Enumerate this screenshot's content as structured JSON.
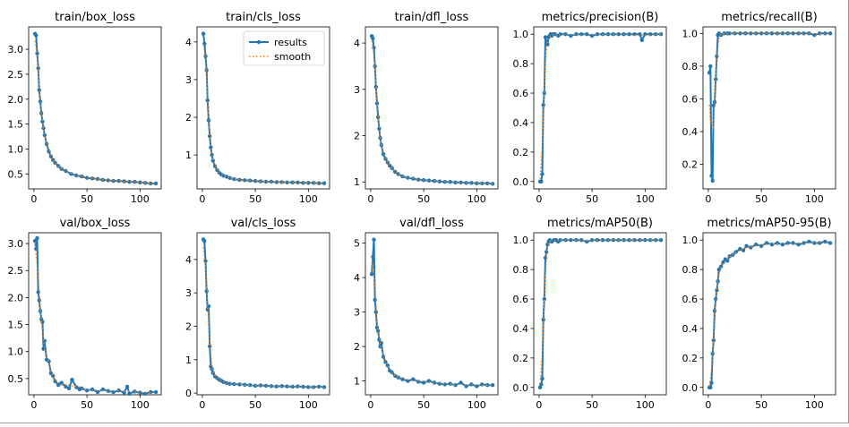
{
  "colors": {
    "results": "#1f77b4",
    "smooth": "#ff7f0e",
    "axis": "#000000"
  },
  "legend": {
    "results_label": "results",
    "smooth_label": "smooth",
    "placement": "top-right of train/cls_loss"
  },
  "chart_data": [
    {
      "type": "line",
      "title": "train/box_loss",
      "xlim": [
        -5,
        120
      ],
      "ylim": [
        0.2,
        3.45
      ],
      "xticks": [
        0,
        50,
        100
      ],
      "yticks": [
        0.5,
        1.0,
        1.5,
        2.0,
        2.5,
        3.0
      ],
      "ytick_labels": [
        "0.5",
        "1.0",
        "1.5",
        "2.0",
        "2.5",
        "3.0"
      ],
      "series": [
        {
          "name": "results",
          "x": [
            1,
            2,
            3,
            4,
            5,
            6,
            7,
            8,
            9,
            10,
            12,
            14,
            16,
            18,
            20,
            23,
            26,
            30,
            35,
            40,
            45,
            50,
            55,
            60,
            65,
            70,
            75,
            80,
            85,
            90,
            95,
            100,
            105,
            110,
            115
          ],
          "y": [
            3.31,
            3.28,
            2.92,
            2.62,
            2.18,
            1.95,
            1.72,
            1.55,
            1.42,
            1.28,
            1.1,
            0.95,
            0.85,
            0.78,
            0.72,
            0.66,
            0.6,
            0.56,
            0.5,
            0.47,
            0.45,
            0.42,
            0.41,
            0.4,
            0.38,
            0.37,
            0.36,
            0.36,
            0.35,
            0.34,
            0.34,
            0.33,
            0.32,
            0.31,
            0.31
          ]
        }
      ]
    },
    {
      "type": "line",
      "title": "train/cls_loss",
      "xlim": [
        -5,
        120
      ],
      "ylim": [
        0.1,
        4.4
      ],
      "xticks": [
        0,
        50,
        100
      ],
      "yticks": [
        1,
        2,
        3,
        4
      ],
      "ytick_labels": [
        "1",
        "2",
        "3",
        "4"
      ],
      "series": [
        {
          "name": "results",
          "x": [
            1,
            2,
            3,
            4,
            5,
            6,
            7,
            8,
            9,
            10,
            12,
            14,
            16,
            18,
            20,
            23,
            26,
            30,
            35,
            40,
            45,
            50,
            55,
            60,
            65,
            70,
            75,
            80,
            85,
            90,
            95,
            100,
            105,
            110,
            115
          ],
          "y": [
            4.22,
            3.95,
            3.62,
            3.25,
            2.45,
            1.92,
            1.5,
            1.2,
            1.0,
            0.85,
            0.7,
            0.6,
            0.53,
            0.48,
            0.45,
            0.42,
            0.39,
            0.36,
            0.34,
            0.33,
            0.32,
            0.31,
            0.3,
            0.29,
            0.29,
            0.28,
            0.28,
            0.27,
            0.27,
            0.27,
            0.26,
            0.26,
            0.26,
            0.25,
            0.25
          ]
        }
      ]
    },
    {
      "type": "line",
      "title": "train/dfl_loss",
      "xlim": [
        -5,
        120
      ],
      "ylim": [
        0.85,
        4.35
      ],
      "xticks": [
        0,
        50,
        100
      ],
      "yticks": [
        1,
        2,
        3,
        4
      ],
      "ytick_labels": [
        "1",
        "2",
        "3",
        "4"
      ],
      "series": [
        {
          "name": "results",
          "x": [
            1,
            2,
            3,
            4,
            5,
            6,
            7,
            8,
            9,
            10,
            12,
            14,
            16,
            18,
            20,
            23,
            26,
            30,
            35,
            40,
            45,
            50,
            55,
            60,
            65,
            70,
            75,
            80,
            85,
            90,
            95,
            100,
            105,
            110,
            115
          ],
          "y": [
            4.15,
            4.1,
            3.9,
            3.5,
            3.05,
            2.7,
            2.4,
            2.15,
            1.95,
            1.8,
            1.6,
            1.5,
            1.42,
            1.35,
            1.3,
            1.22,
            1.17,
            1.12,
            1.09,
            1.07,
            1.05,
            1.04,
            1.03,
            1.02,
            1.01,
            1.0,
            1.0,
            0.99,
            0.99,
            0.98,
            0.98,
            0.97,
            0.97,
            0.97,
            0.96
          ]
        }
      ]
    },
    {
      "type": "line",
      "title": "metrics/precision(B)",
      "xlim": [
        -5,
        120
      ],
      "ylim": [
        -0.05,
        1.05
      ],
      "xticks": [
        0,
        50,
        100
      ],
      "yticks": [
        0.0,
        0.2,
        0.4,
        0.6,
        0.8,
        1.0
      ],
      "ytick_labels": [
        "0.0",
        "0.2",
        "0.4",
        "0.6",
        "0.8",
        "1.0"
      ],
      "series": [
        {
          "name": "results",
          "x": [
            1,
            2,
            3,
            4,
            5,
            6,
            7,
            8,
            9,
            10,
            11,
            12,
            13,
            15,
            18,
            20,
            25,
            30,
            35,
            40,
            45,
            50,
            55,
            60,
            65,
            70,
            75,
            80,
            85,
            90,
            95,
            97,
            100,
            105,
            110,
            115
          ],
          "y": [
            0.0,
            0.0,
            0.05,
            0.52,
            0.6,
            0.98,
            0.95,
            0.93,
            0.98,
            0.99,
            1.0,
            0.99,
            1.0,
            1.0,
            0.99,
            1.0,
            1.0,
            0.99,
            1.0,
            1.0,
            1.0,
            0.99,
            1.0,
            1.0,
            1.0,
            1.0,
            1.0,
            1.0,
            1.0,
            1.0,
            1.0,
            0.96,
            1.0,
            1.0,
            1.0,
            1.0
          ]
        }
      ]
    },
    {
      "type": "line",
      "title": "metrics/recall(B)",
      "xlim": [
        -5,
        120
      ],
      "ylim": [
        0.05,
        1.04
      ],
      "xticks": [
        0,
        50,
        100
      ],
      "yticks": [
        0.2,
        0.4,
        0.6,
        0.8,
        1.0
      ],
      "ytick_labels": [
        "0.2",
        "0.4",
        "0.6",
        "0.8",
        "1.0"
      ],
      "series": [
        {
          "name": "results",
          "x": [
            1,
            2,
            3,
            4,
            5,
            6,
            7,
            8,
            9,
            10,
            12,
            15,
            18,
            20,
            25,
            30,
            35,
            40,
            45,
            50,
            55,
            60,
            65,
            70,
            75,
            80,
            85,
            90,
            95,
            100,
            105,
            110,
            115
          ],
          "y": [
            0.76,
            0.8,
            0.13,
            0.1,
            0.56,
            0.58,
            0.72,
            0.86,
            0.99,
            1.0,
            0.99,
            1.0,
            1.0,
            1.0,
            1.0,
            1.0,
            1.0,
            1.0,
            1.0,
            1.0,
            1.0,
            1.0,
            1.0,
            1.0,
            1.0,
            1.0,
            1.0,
            1.0,
            1.0,
            0.99,
            1.0,
            1.0,
            1.0
          ]
        }
      ]
    },
    {
      "type": "line",
      "title": "val/box_loss",
      "xlim": [
        -5,
        120
      ],
      "ylim": [
        0.2,
        3.2
      ],
      "xticks": [
        0,
        50,
        100
      ],
      "yticks": [
        0.5,
        1.0,
        1.5,
        2.0,
        2.5,
        3.0
      ],
      "ytick_labels": [
        "0.5",
        "1.0",
        "1.5",
        "2.0",
        "2.5",
        "3.0"
      ],
      "series": [
        {
          "name": "results",
          "x": [
            1,
            2,
            3,
            4,
            5,
            6,
            7,
            8,
            9,
            10,
            12,
            14,
            16,
            18,
            20,
            23,
            26,
            30,
            33,
            36,
            40,
            43,
            45,
            50,
            55,
            60,
            65,
            70,
            75,
            80,
            85,
            88,
            90,
            95,
            100,
            105,
            110,
            115
          ],
          "y": [
            3.05,
            2.9,
            3.1,
            2.1,
            1.95,
            1.75,
            1.6,
            1.55,
            1.05,
            1.2,
            0.85,
            0.82,
            0.6,
            0.55,
            0.45,
            0.38,
            0.42,
            0.35,
            0.32,
            0.48,
            0.34,
            0.3,
            0.32,
            0.28,
            0.3,
            0.25,
            0.3,
            0.27,
            0.25,
            0.28,
            0.24,
            0.35,
            0.22,
            0.26,
            0.24,
            0.22,
            0.25,
            0.25
          ]
        }
      ]
    },
    {
      "type": "line",
      "title": "val/cls_loss",
      "xlim": [
        -5,
        120
      ],
      "ylim": [
        -0.05,
        4.8
      ],
      "xticks": [
        0,
        50,
        100
      ],
      "yticks": [
        0,
        1,
        2,
        3,
        4
      ],
      "ytick_labels": [
        "0",
        "1",
        "2",
        "3",
        "4"
      ],
      "series": [
        {
          "name": "results",
          "x": [
            1,
            2,
            3,
            4,
            5,
            6,
            7,
            8,
            9,
            10,
            12,
            14,
            16,
            18,
            20,
            23,
            26,
            30,
            35,
            40,
            45,
            50,
            55,
            60,
            65,
            70,
            75,
            80,
            85,
            90,
            95,
            100,
            105,
            110,
            115
          ],
          "y": [
            4.6,
            4.55,
            3.95,
            3.05,
            2.5,
            2.6,
            1.4,
            0.8,
            0.72,
            0.6,
            0.5,
            0.45,
            0.4,
            0.37,
            0.33,
            0.3,
            0.28,
            0.27,
            0.26,
            0.25,
            0.24,
            0.22,
            0.23,
            0.22,
            0.21,
            0.2,
            0.21,
            0.2,
            0.19,
            0.2,
            0.19,
            0.18,
            0.18,
            0.19,
            0.18
          ]
        }
      ]
    },
    {
      "type": "line",
      "title": "val/dfl_loss",
      "xlim": [
        -5,
        120
      ],
      "ylim": [
        0.6,
        5.3
      ],
      "xticks": [
        0,
        50,
        100
      ],
      "yticks": [
        1,
        2,
        3,
        4,
        5
      ],
      "ytick_labels": [
        "1",
        "2",
        "3",
        "4",
        "5"
      ],
      "series": [
        {
          "name": "results",
          "x": [
            1,
            2,
            3,
            4,
            5,
            6,
            7,
            8,
            9,
            10,
            12,
            14,
            16,
            18,
            20,
            23,
            26,
            30,
            35,
            40,
            45,
            50,
            55,
            60,
            65,
            70,
            75,
            80,
            85,
            90,
            95,
            100,
            105,
            110,
            115
          ],
          "y": [
            4.1,
            4.6,
            5.1,
            3.35,
            3.0,
            2.55,
            2.45,
            2.2,
            2.0,
            2.1,
            1.7,
            1.55,
            1.45,
            1.3,
            1.25,
            1.15,
            1.1,
            1.05,
            1.0,
            1.05,
            0.98,
            0.95,
            1.0,
            0.95,
            0.92,
            0.9,
            0.92,
            0.88,
            0.95,
            0.85,
            0.9,
            0.85,
            0.9,
            0.88,
            0.88
          ]
        }
      ]
    },
    {
      "type": "line",
      "title": "metrics/mAP50(B)",
      "xlim": [
        -5,
        120
      ],
      "ylim": [
        -0.05,
        1.05
      ],
      "xticks": [
        0,
        50,
        100
      ],
      "yticks": [
        0.0,
        0.2,
        0.4,
        0.6,
        0.8,
        1.0
      ],
      "ytick_labels": [
        "0.0",
        "0.2",
        "0.4",
        "0.6",
        "0.8",
        "1.0"
      ],
      "series": [
        {
          "name": "results",
          "x": [
            1,
            2,
            3,
            4,
            5,
            6,
            7,
            8,
            9,
            10,
            12,
            14,
            16,
            18,
            20,
            25,
            30,
            35,
            40,
            45,
            50,
            55,
            60,
            65,
            70,
            75,
            80,
            85,
            90,
            95,
            100,
            105,
            110,
            115
          ],
          "y": [
            0.0,
            0.02,
            0.06,
            0.46,
            0.6,
            0.88,
            0.92,
            0.97,
            0.99,
            1.0,
            0.99,
            1.0,
            1.0,
            0.99,
            1.0,
            1.0,
            1.0,
            1.0,
            1.0,
            0.99,
            1.0,
            1.0,
            1.0,
            1.0,
            1.0,
            1.0,
            1.0,
            1.0,
            1.0,
            1.0,
            1.0,
            1.0,
            1.0,
            1.0
          ]
        }
      ]
    },
    {
      "type": "line",
      "title": "metrics/mAP50-95(B)",
      "xlim": [
        -5,
        120
      ],
      "ylim": [
        -0.05,
        1.05
      ],
      "xticks": [
        0,
        50,
        100
      ],
      "yticks": [
        0.0,
        0.2,
        0.4,
        0.6,
        0.8,
        1.0
      ],
      "ytick_labels": [
        "0.0",
        "0.2",
        "0.4",
        "0.6",
        "0.8",
        "1.0"
      ],
      "series": [
        {
          "name": "results",
          "x": [
            1,
            2,
            3,
            4,
            5,
            6,
            7,
            8,
            9,
            10,
            12,
            14,
            16,
            18,
            20,
            23,
            26,
            30,
            33,
            36,
            40,
            45,
            50,
            55,
            60,
            65,
            70,
            75,
            80,
            85,
            90,
            95,
            100,
            105,
            110,
            115
          ],
          "y": [
            0.0,
            0.0,
            0.03,
            0.23,
            0.32,
            0.52,
            0.6,
            0.66,
            0.72,
            0.8,
            0.82,
            0.85,
            0.87,
            0.86,
            0.89,
            0.9,
            0.92,
            0.94,
            0.93,
            0.96,
            0.95,
            0.97,
            0.96,
            0.98,
            0.97,
            0.98,
            0.97,
            0.98,
            0.98,
            0.97,
            0.98,
            0.99,
            0.98,
            0.98,
            0.99,
            0.98
          ]
        }
      ]
    }
  ]
}
